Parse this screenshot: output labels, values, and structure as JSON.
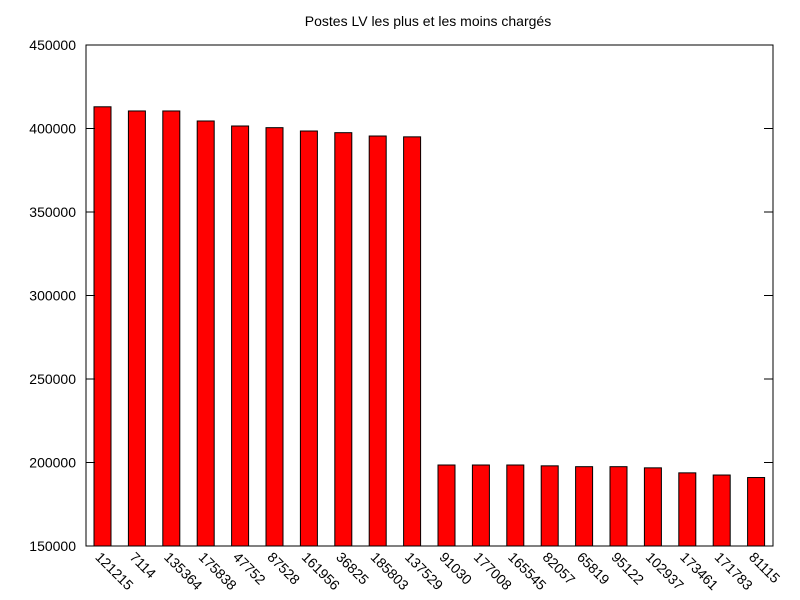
{
  "chart_data": {
    "type": "bar",
    "title": "Postes LV les plus et les moins chargés",
    "xlabel": "",
    "ylabel": "",
    "ylim": [
      150000,
      450000
    ],
    "yticks": [
      150000,
      200000,
      250000,
      300000,
      350000,
      400000,
      450000
    ],
    "ytick_labels": [
      "150000",
      "200000",
      "250000",
      "300000",
      "350000",
      "400000",
      "450000"
    ],
    "categories": [
      "121215",
      "7114",
      "135364",
      "175838",
      "47752",
      "87528",
      "161956",
      "36825",
      "185803",
      "137529",
      "91030",
      "177008",
      "165545",
      "82057",
      "65819",
      "95122",
      "102937",
      "173461",
      "171783",
      "81115"
    ],
    "values": [
      413000,
      410500,
      410500,
      404500,
      401500,
      400500,
      398500,
      397500,
      395500,
      395000,
      198500,
      198500,
      198500,
      198000,
      197500,
      197500,
      196800,
      193800,
      192500,
      191000
    ],
    "bar_color": "#ff0000",
    "grid": false,
    "legend": "none"
  }
}
